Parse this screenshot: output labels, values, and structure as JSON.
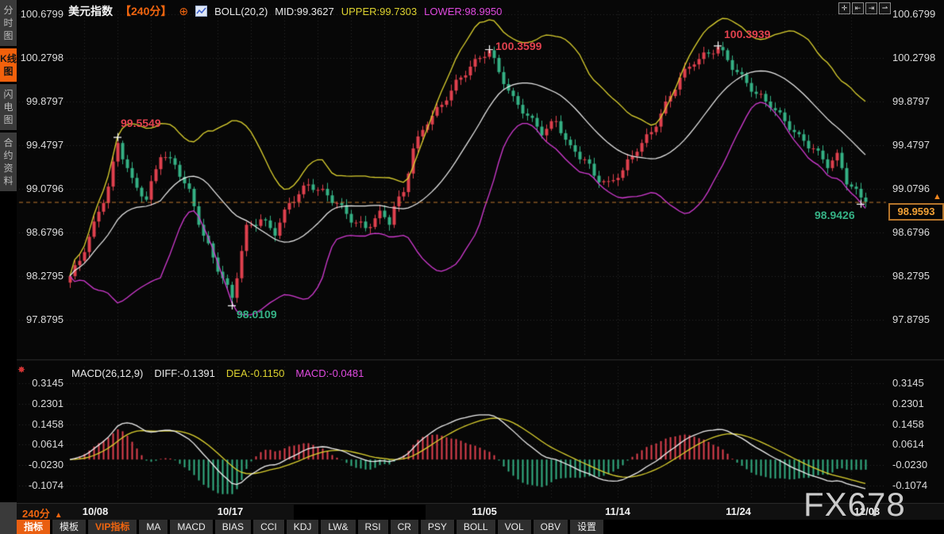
{
  "app": {
    "watermark": "FX678"
  },
  "sidebar": {
    "items": [
      {
        "label": "分时图",
        "active": false
      },
      {
        "label": "K线图",
        "active": true
      },
      {
        "label": "闪电图",
        "active": false
      },
      {
        "label": "合约资料",
        "active": false
      }
    ]
  },
  "header": {
    "symbol": "美元指数",
    "period": "【240分】",
    "add_icon": "⊕",
    "boll": "BOLL(20,2)",
    "mid": "MID:99.3627",
    "upper": "UPPER:99.7303",
    "lower": "LOWER:98.9950"
  },
  "window_controls": [
    {
      "name": "pan",
      "glyph": "✛"
    },
    {
      "name": "compress-x",
      "glyph": "⇤"
    },
    {
      "name": "expand-x",
      "glyph": "⇥"
    },
    {
      "name": "page-right",
      "glyph": "⇀"
    }
  ],
  "axis": {
    "main": [
      "100.6799",
      "100.2798",
      "99.8797",
      "99.4797",
      "99.0796",
      "98.6796",
      "98.2795",
      "97.8795"
    ],
    "macd": [
      "0.3145",
      "0.2301",
      "0.1458",
      "0.0614",
      "-0.0230",
      "-0.1074"
    ]
  },
  "annotations": [
    {
      "text": "99.5549",
      "index": 10,
      "price": 99.5549,
      "color": "red"
    },
    {
      "text": "100.3599",
      "index": 88,
      "price": 100.3599,
      "color": "red"
    },
    {
      "text": "100.3939",
      "index": 136,
      "price": 100.3939,
      "color": "red"
    },
    {
      "text": "98.0109",
      "index": 34,
      "price": 98.0109,
      "color": "green"
    },
    {
      "text": "98.9426",
      "index": 166,
      "price": 98.9426,
      "color": "green"
    }
  ],
  "price_box": {
    "value": "98.9593",
    "arrow": "▲"
  },
  "macd_panel": {
    "icon": "✸",
    "label": "MACD(26,12,9)",
    "diff": "DIFF:-0.1391",
    "dea": "DEA:-0.1150",
    "macd": "MACD:-0.0481"
  },
  "bottom": {
    "period": "240分",
    "period_arrow": "▲",
    "dates": [
      "10/08",
      "10/17",
      "11/05",
      "11/14",
      "11/24",
      "12/03"
    ],
    "toolbar": [
      {
        "label": "指标",
        "state": "active"
      },
      {
        "label": "模板",
        "state": "normal"
      },
      {
        "label": "VIP指标",
        "state": "vip"
      },
      {
        "label": "MA",
        "state": "normal"
      },
      {
        "label": "MACD",
        "state": "normal"
      },
      {
        "label": "BIAS",
        "state": "normal"
      },
      {
        "label": "CCI",
        "state": "normal"
      },
      {
        "label": "KDJ",
        "state": "normal"
      },
      {
        "label": "LW&",
        "state": "normal"
      },
      {
        "label": "RSI",
        "state": "normal"
      },
      {
        "label": "CR",
        "state": "normal"
      },
      {
        "label": "PSY",
        "state": "normal"
      },
      {
        "label": "BOLL",
        "state": "normal"
      },
      {
        "label": "VOL",
        "state": "normal"
      },
      {
        "label": "OBV",
        "state": "normal"
      },
      {
        "label": "设置",
        "state": "normal"
      }
    ]
  },
  "colors": {
    "up": "#e0414e",
    "down": "#35b185",
    "boll_mid": "#f0f0f0",
    "boll_upper": "#ddd22f",
    "boll_lower": "#d33bd3",
    "accent": "#f0650f",
    "price_line": "#c07830",
    "grid": "#2c2c2c",
    "diff_line": "#f0f0f0",
    "dea_line": "#ddd22f",
    "hist_up": "#e0414e",
    "hist_down": "#35b185"
  },
  "chart_data": {
    "type": "candlestick",
    "title": "美元指数 240分",
    "period_minutes": 240,
    "y_axis_labels": [
      "100.6799",
      "100.2798",
      "99.8797",
      "99.4797",
      "99.0796",
      "98.6796",
      "98.2795",
      "97.8795"
    ],
    "macd_axis_labels": [
      "0.3145",
      "0.2301",
      "0.1458",
      "0.0614",
      "-0.0230",
      "-0.1074"
    ],
    "current_price": 98.9593,
    "boll": {
      "period": 20,
      "mult": 2,
      "mid": 99.3627,
      "upper": 99.7303,
      "lower": 98.995
    },
    "macd": {
      "fast": 26,
      "slow": 12,
      "signal": 9,
      "diff": -0.1391,
      "dea": -0.115,
      "macd": -0.0481
    },
    "date_ticks": [
      {
        "label": "10/08",
        "index": 5
      },
      {
        "label": "10/17",
        "index": 34
      },
      {
        "label": "11/05",
        "index": 87
      },
      {
        "label": "11/14",
        "index": 115
      },
      {
        "label": "11/24",
        "index": 140
      },
      {
        "label": "12/03",
        "index": 167
      }
    ],
    "extremes": {
      "10": {
        "high": 99.5549
      },
      "34": {
        "low": 98.0109
      },
      "88": {
        "high": 100.3599
      },
      "136": {
        "high": 100.3939
      },
      "166": {
        "low": 98.9426
      }
    },
    "closes": [
      98.28,
      98.38,
      98.42,
      98.5,
      98.64,
      98.78,
      98.87,
      98.95,
      99.1,
      99.33,
      99.5,
      99.35,
      99.27,
      99.18,
      99.09,
      99.01,
      98.98,
      99.15,
      99.26,
      99.37,
      99.37,
      99.36,
      99.3,
      99.19,
      99.13,
      99.08,
      98.92,
      98.75,
      98.65,
      98.58,
      98.45,
      98.32,
      98.26,
      98.2,
      98.08,
      98.26,
      98.51,
      98.75,
      98.75,
      98.74,
      98.8,
      98.79,
      98.72,
      98.65,
      98.77,
      98.89,
      98.95,
      98.96,
      99.03,
      99.11,
      99.12,
      99.07,
      99.07,
      99.08,
      99.02,
      98.95,
      98.95,
      98.93,
      98.85,
      98.77,
      98.77,
      98.78,
      98.72,
      98.73,
      98.81,
      98.88,
      98.82,
      98.75,
      98.92,
      99.01,
      99.05,
      99.22,
      99.45,
      99.56,
      99.62,
      99.67,
      99.75,
      99.83,
      99.85,
      99.89,
      99.98,
      100.08,
      100.1,
      100.12,
      100.2,
      100.27,
      100.28,
      100.29,
      100.35,
      100.28,
      100.15,
      100.04,
      99.98,
      99.93,
      99.85,
      99.77,
      99.75,
      99.73,
      99.65,
      99.57,
      99.63,
      99.7,
      99.7,
      99.59,
      99.53,
      99.48,
      99.42,
      99.35,
      99.35,
      99.31,
      99.2,
      99.14,
      99.15,
      99.15,
      99.16,
      99.18,
      99.25,
      99.35,
      99.38,
      99.42,
      99.5,
      99.58,
      99.6,
      99.65,
      99.77,
      99.88,
      99.93,
      99.99,
      100.1,
      100.18,
      100.2,
      100.22,
      100.27,
      100.33,
      100.32,
      100.32,
      100.38,
      100.35,
      100.26,
      100.17,
      100.15,
      100.13,
      100.05,
      99.97,
      99.95,
      99.95,
      99.88,
      99.82,
      99.8,
      99.78,
      99.7,
      99.62,
      99.6,
      99.58,
      99.52,
      99.45,
      99.45,
      99.43,
      99.35,
      99.27,
      99.34,
      99.41,
      99.27,
      99.12,
      99.1,
      99.08,
      99.0,
      98.9593
    ]
  }
}
